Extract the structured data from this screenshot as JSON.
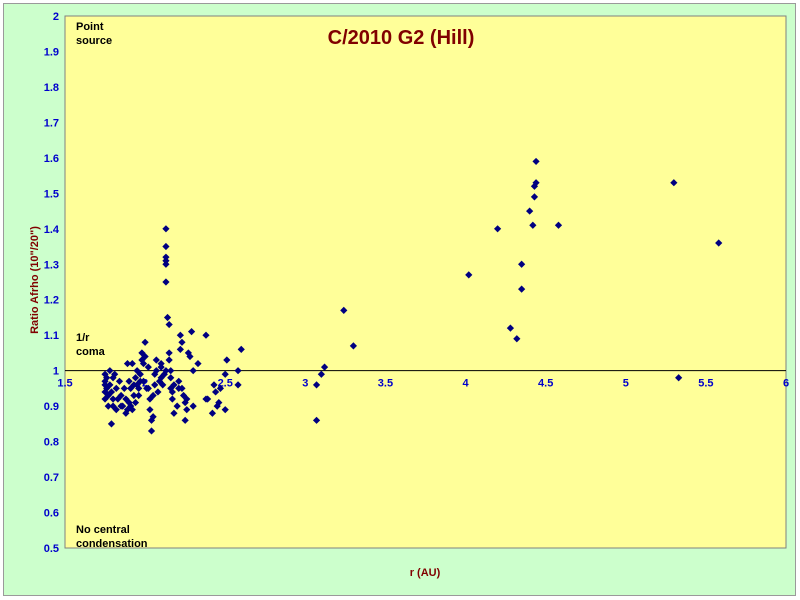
{
  "chart_data": {
    "type": "scatter",
    "title": "C/2010 G2 (Hill)",
    "xlabel": "r (AU)",
    "ylabel": "Ratio Afrho (10\"/20\")",
    "xlim": [
      1.5,
      6
    ],
    "ylim": [
      0.5,
      2
    ],
    "xticks": [
      "1.5",
      "2",
      "2.5",
      "3",
      "3.5",
      "4",
      "4.5",
      "5",
      "5.5",
      "6"
    ],
    "yticks": [
      "0.5",
      "0.6",
      "0.7",
      "0.8",
      "0.9",
      "1",
      "1.1",
      "1.2",
      "1.3",
      "1.4",
      "1.5",
      "1.6",
      "1.7",
      "1.8",
      "1.9",
      "2"
    ],
    "reference_line_y": 1,
    "grid": false,
    "plot_background": "#ffff99",
    "figure_background": "#ccffcc",
    "marker": "diamond",
    "marker_color": "#000080",
    "annotations": {
      "point_source": [
        "Point",
        "source"
      ],
      "one_over_r": [
        "1/r",
        "coma"
      ],
      "no_central": [
        "No central",
        "condensation"
      ]
    },
    "series": [
      {
        "points": [
          [
            1.75,
            0.92
          ],
          [
            1.75,
            0.94
          ],
          [
            1.75,
            0.96
          ],
          [
            1.75,
            0.97
          ],
          [
            1.75,
            0.99
          ],
          [
            1.76,
            0.95
          ],
          [
            1.76,
            0.98
          ],
          [
            1.77,
            0.9
          ],
          [
            1.77,
            0.93
          ],
          [
            1.78,
            0.96
          ],
          [
            1.78,
            1.0
          ],
          [
            1.79,
            0.85
          ],
          [
            1.79,
            0.94
          ],
          [
            1.8,
            0.9
          ],
          [
            1.8,
            0.92
          ],
          [
            1.8,
            0.98
          ],
          [
            1.81,
            0.99
          ],
          [
            1.82,
            0.95
          ],
          [
            1.82,
            0.89
          ],
          [
            1.83,
            0.92
          ],
          [
            1.84,
            0.97
          ],
          [
            1.85,
            0.9
          ],
          [
            1.85,
            0.93
          ],
          [
            1.86,
            0.9
          ],
          [
            1.87,
            0.95
          ],
          [
            1.88,
            0.88
          ],
          [
            1.88,
            0.92
          ],
          [
            1.89,
            0.89
          ],
          [
            1.89,
            1.02
          ],
          [
            1.9,
            0.91
          ],
          [
            1.9,
            0.97
          ],
          [
            1.91,
            0.9
          ],
          [
            1.91,
            0.95
          ],
          [
            1.92,
            1.02
          ],
          [
            1.92,
            0.89
          ],
          [
            1.93,
            0.93
          ],
          [
            1.93,
            0.96
          ],
          [
            1.94,
            0.98
          ],
          [
            1.94,
            0.91
          ],
          [
            1.95,
            1.0
          ],
          [
            1.95,
            0.96
          ],
          [
            1.96,
            0.93
          ],
          [
            1.96,
            0.95
          ],
          [
            1.97,
            0.97
          ],
          [
            1.97,
            0.99
          ],
          [
            1.98,
            1.03
          ],
          [
            1.98,
            1.05
          ],
          [
            1.99,
            0.97
          ],
          [
            1.99,
            1.02
          ],
          [
            2.0,
            1.08
          ],
          [
            2.0,
            1.04
          ],
          [
            2.01,
            0.95
          ],
          [
            2.02,
            0.95
          ],
          [
            2.02,
            1.01
          ],
          [
            2.03,
            0.92
          ],
          [
            2.03,
            0.89
          ],
          [
            2.04,
            0.86
          ],
          [
            2.04,
            0.83
          ],
          [
            2.05,
            0.87
          ],
          [
            2.05,
            0.93
          ],
          [
            2.06,
            0.96
          ],
          [
            2.06,
            0.99
          ],
          [
            2.07,
            1.0
          ],
          [
            2.07,
            1.03
          ],
          [
            2.08,
            0.94
          ],
          [
            2.09,
            0.97
          ],
          [
            2.1,
            1.02
          ],
          [
            2.1,
            0.98
          ],
          [
            2.1,
            1.01
          ],
          [
            2.11,
            0.96
          ],
          [
            2.12,
            0.99
          ],
          [
            2.13,
            1.0
          ],
          [
            2.13,
            1.4
          ],
          [
            2.13,
            1.35
          ],
          [
            2.13,
            1.32
          ],
          [
            2.13,
            1.3
          ],
          [
            2.13,
            1.31
          ],
          [
            2.13,
            1.25
          ],
          [
            2.14,
            1.15
          ],
          [
            2.15,
            1.13
          ],
          [
            2.15,
            1.05
          ],
          [
            2.15,
            1.03
          ],
          [
            2.16,
            1.0
          ],
          [
            2.16,
            0.98
          ],
          [
            2.16,
            0.95
          ],
          [
            2.17,
            0.92
          ],
          [
            2.17,
            0.94
          ],
          [
            2.18,
            0.88
          ],
          [
            2.18,
            0.96
          ],
          [
            2.2,
            0.9
          ],
          [
            2.21,
            0.97
          ],
          [
            2.21,
            0.95
          ],
          [
            2.22,
            1.06
          ],
          [
            2.22,
            1.1
          ],
          [
            2.23,
            1.08
          ],
          [
            2.23,
            0.95
          ],
          [
            2.24,
            0.93
          ],
          [
            2.25,
            0.91
          ],
          [
            2.25,
            0.86
          ],
          [
            2.26,
            0.89
          ],
          [
            2.26,
            0.92
          ],
          [
            2.27,
            1.05
          ],
          [
            2.28,
            1.04
          ],
          [
            2.29,
            1.11
          ],
          [
            2.3,
            0.9
          ],
          [
            2.3,
            1.0
          ],
          [
            2.33,
            1.02
          ],
          [
            2.38,
            1.1
          ],
          [
            2.38,
            0.92
          ],
          [
            2.39,
            0.92
          ],
          [
            2.42,
            0.88
          ],
          [
            2.43,
            0.96
          ],
          [
            2.44,
            0.94
          ],
          [
            2.45,
            0.9
          ],
          [
            2.46,
            0.91
          ],
          [
            2.47,
            0.95
          ],
          [
            2.5,
            0.89
          ],
          [
            2.5,
            0.99
          ],
          [
            2.51,
            1.03
          ],
          [
            2.6,
            1.06
          ],
          [
            2.58,
            1.0
          ],
          [
            2.58,
            0.96
          ],
          [
            3.07,
            0.86
          ],
          [
            3.07,
            0.96
          ],
          [
            3.1,
            0.99
          ],
          [
            3.12,
            1.01
          ],
          [
            3.24,
            1.17
          ],
          [
            3.3,
            1.07
          ],
          [
            4.02,
            1.27
          ],
          [
            4.2,
            1.4
          ],
          [
            4.28,
            1.12
          ],
          [
            4.32,
            1.09
          ],
          [
            4.35,
            1.3
          ],
          [
            4.35,
            1.23
          ],
          [
            4.4,
            1.45
          ],
          [
            4.42,
            1.41
          ],
          [
            4.43,
            1.49
          ],
          [
            4.43,
            1.52
          ],
          [
            4.44,
            1.53
          ],
          [
            4.44,
            1.59
          ],
          [
            4.58,
            1.41
          ],
          [
            5.3,
            1.53
          ],
          [
            5.33,
            0.98
          ],
          [
            5.58,
            1.36
          ]
        ]
      }
    ]
  }
}
